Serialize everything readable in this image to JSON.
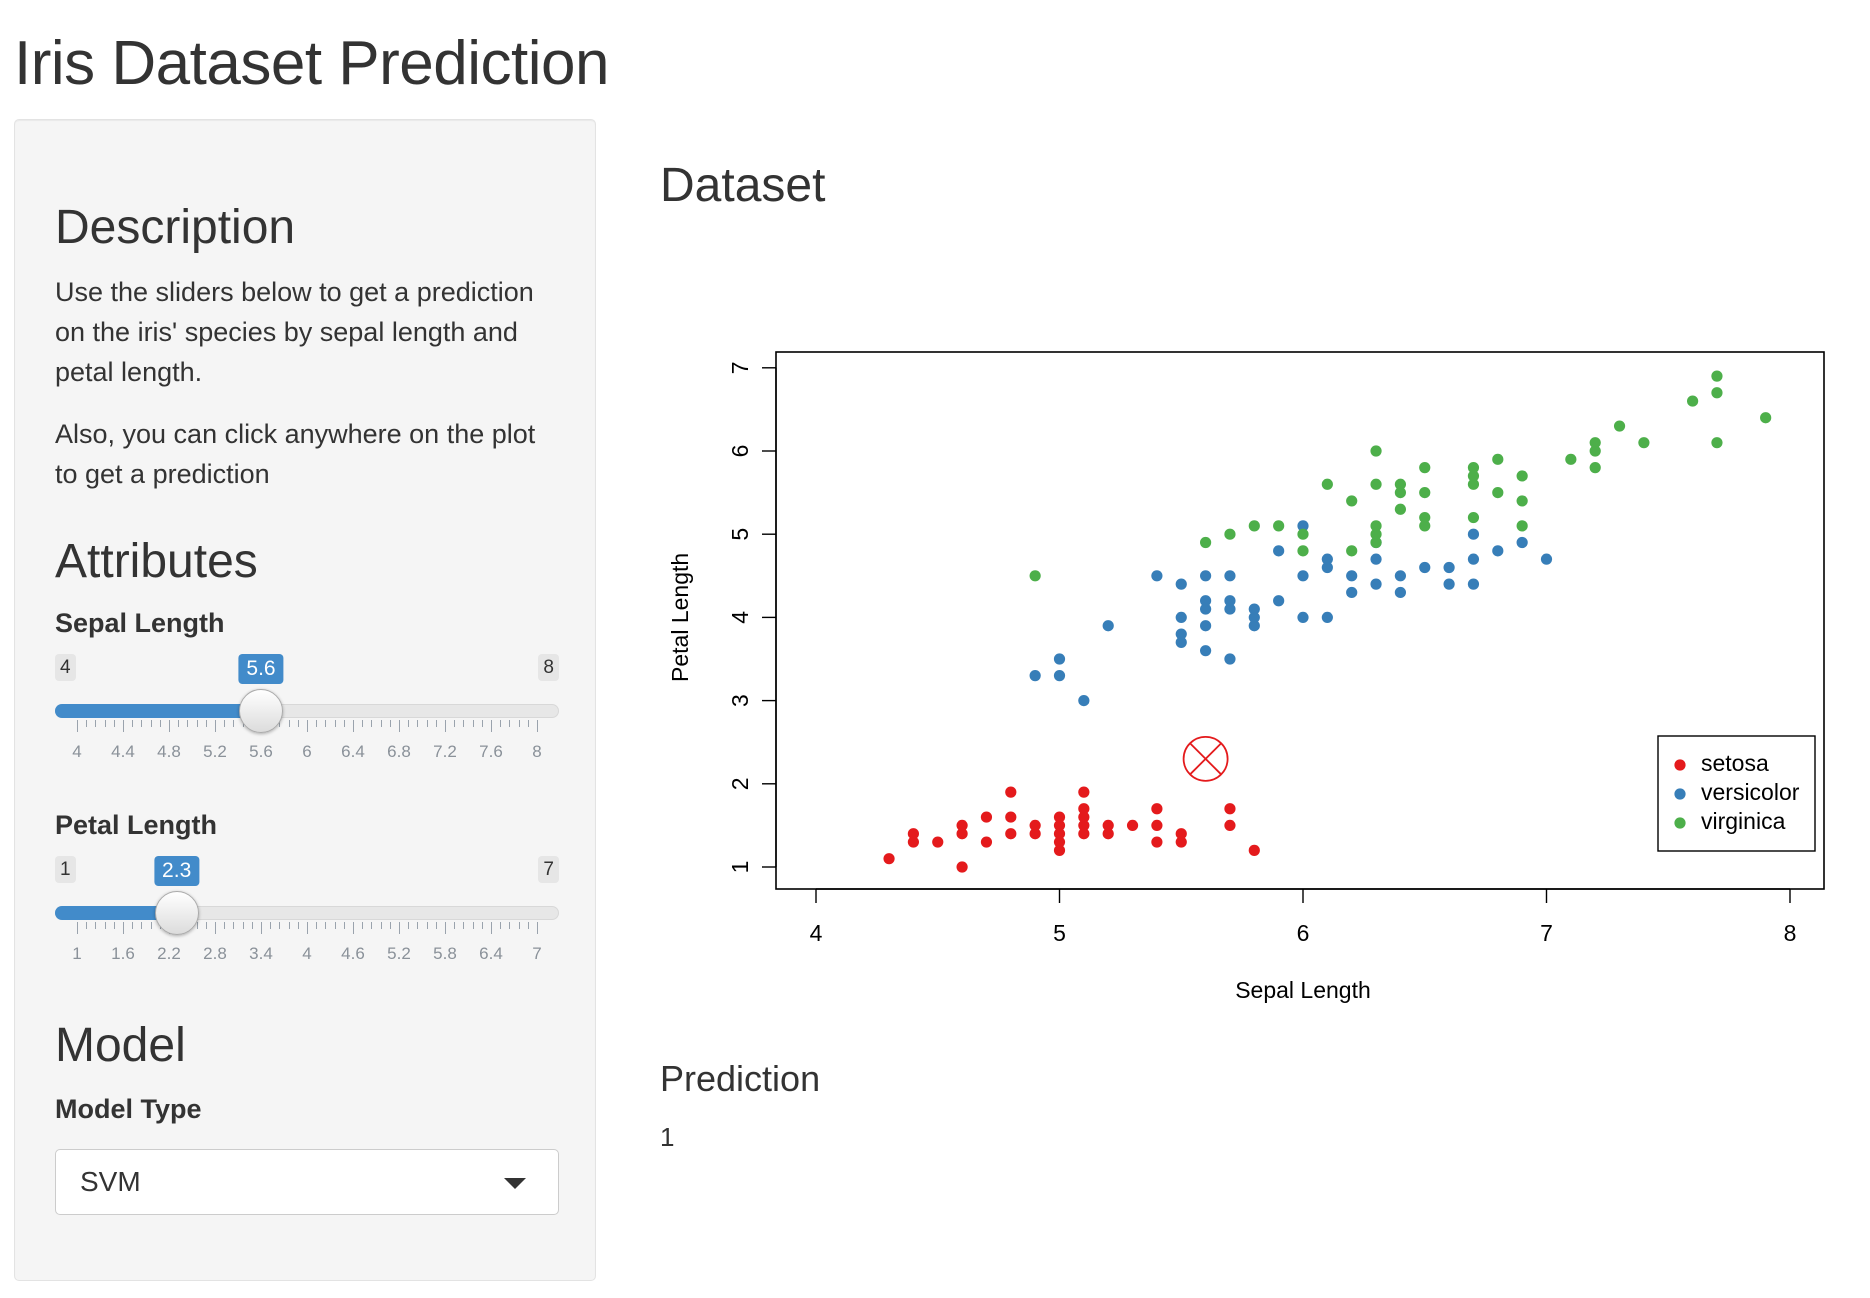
{
  "title": "Iris Dataset Prediction",
  "sidebar": {
    "description_heading": "Description",
    "description_p1": "Use the sliders below to get a prediction on the iris' species by sepal length and petal length.",
    "description_p2": "Also, you can click anywhere on the plot to get a prediction",
    "attributes_heading": "Attributes",
    "sepal": {
      "label": "Sepal Length",
      "min": "4",
      "max": "8",
      "value": "5.6",
      "ticks": [
        "4",
        "4.4",
        "4.8",
        "5.2",
        "5.6",
        "6",
        "6.4",
        "6.8",
        "7.2",
        "7.6",
        "8"
      ]
    },
    "petal": {
      "label": "Petal Length",
      "min": "1",
      "max": "7",
      "value": "2.3",
      "ticks": [
        "1",
        "1.6",
        "2.2",
        "2.8",
        "3.4",
        "4",
        "4.6",
        "5.2",
        "5.8",
        "6.4",
        "7"
      ]
    },
    "model_heading": "Model",
    "model_label": "Model Type",
    "model_value": "SVM"
  },
  "main": {
    "dataset_heading": "Dataset",
    "prediction_heading": "Prediction",
    "prediction_value": "1"
  },
  "chart_data": {
    "type": "scatter",
    "title": "",
    "xlabel": "Sepal Length",
    "ylabel": "Petal Length",
    "xlim": [
      4,
      8
    ],
    "ylim": [
      1,
      7
    ],
    "xticks": [
      "4",
      "5",
      "6",
      "7",
      "8"
    ],
    "yticks": [
      "1",
      "2",
      "3",
      "4",
      "5",
      "6",
      "7"
    ],
    "legend_position": "bottom-right",
    "marker": {
      "x": 5.6,
      "y": 2.3,
      "color": "#e41a1c"
    },
    "series": [
      {
        "name": "setosa",
        "color": "#e41a1c",
        "points": [
          [
            4.3,
            1.1
          ],
          [
            4.4,
            1.3
          ],
          [
            4.4,
            1.4
          ],
          [
            4.5,
            1.3
          ],
          [
            4.6,
            1.0
          ],
          [
            4.6,
            1.4
          ],
          [
            4.6,
            1.5
          ],
          [
            4.7,
            1.3
          ],
          [
            4.7,
            1.6
          ],
          [
            4.8,
            1.4
          ],
          [
            4.8,
            1.6
          ],
          [
            4.8,
            1.9
          ],
          [
            4.9,
            1.4
          ],
          [
            4.9,
            1.5
          ],
          [
            5.0,
            1.2
          ],
          [
            5.0,
            1.3
          ],
          [
            5.0,
            1.4
          ],
          [
            5.0,
            1.5
          ],
          [
            5.0,
            1.6
          ],
          [
            5.1,
            1.4
          ],
          [
            5.1,
            1.5
          ],
          [
            5.1,
            1.6
          ],
          [
            5.1,
            1.7
          ],
          [
            5.1,
            1.9
          ],
          [
            5.2,
            1.4
          ],
          [
            5.2,
            1.5
          ],
          [
            5.3,
            1.5
          ],
          [
            5.4,
            1.3
          ],
          [
            5.4,
            1.5
          ],
          [
            5.4,
            1.7
          ],
          [
            5.5,
            1.3
          ],
          [
            5.5,
            1.4
          ],
          [
            5.7,
            1.5
          ],
          [
            5.7,
            1.7
          ],
          [
            5.8,
            1.2
          ]
        ]
      },
      {
        "name": "versicolor",
        "color": "#377eb8",
        "points": [
          [
            4.9,
            3.3
          ],
          [
            5.0,
            3.3
          ],
          [
            5.0,
            3.5
          ],
          [
            5.1,
            3.0
          ],
          [
            5.2,
            3.9
          ],
          [
            5.4,
            4.5
          ],
          [
            5.5,
            3.7
          ],
          [
            5.5,
            3.8
          ],
          [
            5.5,
            4.0
          ],
          [
            5.5,
            4.4
          ],
          [
            5.6,
            3.6
          ],
          [
            5.6,
            3.9
          ],
          [
            5.6,
            4.1
          ],
          [
            5.6,
            4.2
          ],
          [
            5.6,
            4.5
          ],
          [
            5.7,
            3.5
          ],
          [
            5.7,
            4.1
          ],
          [
            5.7,
            4.2
          ],
          [
            5.7,
            4.5
          ],
          [
            5.8,
            3.9
          ],
          [
            5.8,
            4.0
          ],
          [
            5.8,
            4.1
          ],
          [
            5.9,
            4.2
          ],
          [
            5.9,
            4.8
          ],
          [
            6.0,
            4.0
          ],
          [
            6.0,
            4.5
          ],
          [
            6.0,
            5.1
          ],
          [
            6.1,
            4.0
          ],
          [
            6.1,
            4.6
          ],
          [
            6.1,
            4.7
          ],
          [
            6.2,
            4.3
          ],
          [
            6.2,
            4.5
          ],
          [
            6.3,
            4.4
          ],
          [
            6.3,
            4.7
          ],
          [
            6.3,
            4.9
          ],
          [
            6.4,
            4.3
          ],
          [
            6.4,
            4.5
          ],
          [
            6.5,
            4.6
          ],
          [
            6.6,
            4.4
          ],
          [
            6.6,
            4.6
          ],
          [
            6.7,
            4.4
          ],
          [
            6.7,
            4.7
          ],
          [
            6.7,
            5.0
          ],
          [
            6.8,
            4.8
          ],
          [
            6.9,
            4.9
          ],
          [
            7.0,
            4.7
          ]
        ]
      },
      {
        "name": "virginica",
        "color": "#4daf4a",
        "points": [
          [
            4.9,
            4.5
          ],
          [
            5.6,
            4.9
          ],
          [
            5.7,
            5.0
          ],
          [
            5.8,
            5.1
          ],
          [
            5.9,
            5.1
          ],
          [
            6.0,
            4.8
          ],
          [
            6.0,
            5.0
          ],
          [
            6.1,
            5.6
          ],
          [
            6.2,
            4.8
          ],
          [
            6.2,
            5.4
          ],
          [
            6.3,
            4.9
          ],
          [
            6.3,
            5.0
          ],
          [
            6.3,
            5.1
          ],
          [
            6.3,
            5.6
          ],
          [
            6.3,
            6.0
          ],
          [
            6.4,
            5.3
          ],
          [
            6.4,
            5.5
          ],
          [
            6.4,
            5.6
          ],
          [
            6.5,
            5.1
          ],
          [
            6.5,
            5.2
          ],
          [
            6.5,
            5.5
          ],
          [
            6.5,
            5.8
          ],
          [
            6.7,
            5.2
          ],
          [
            6.7,
            5.6
          ],
          [
            6.7,
            5.7
          ],
          [
            6.7,
            5.8
          ],
          [
            6.8,
            5.5
          ],
          [
            6.8,
            5.9
          ],
          [
            6.9,
            5.1
          ],
          [
            6.9,
            5.4
          ],
          [
            6.9,
            5.7
          ],
          [
            7.1,
            5.9
          ],
          [
            7.2,
            5.8
          ],
          [
            7.2,
            6.0
          ],
          [
            7.2,
            6.1
          ],
          [
            7.3,
            6.3
          ],
          [
            7.4,
            6.1
          ],
          [
            7.6,
            6.6
          ],
          [
            7.7,
            6.1
          ],
          [
            7.7,
            6.7
          ],
          [
            7.7,
            6.9
          ],
          [
            7.9,
            6.4
          ]
        ]
      }
    ]
  }
}
